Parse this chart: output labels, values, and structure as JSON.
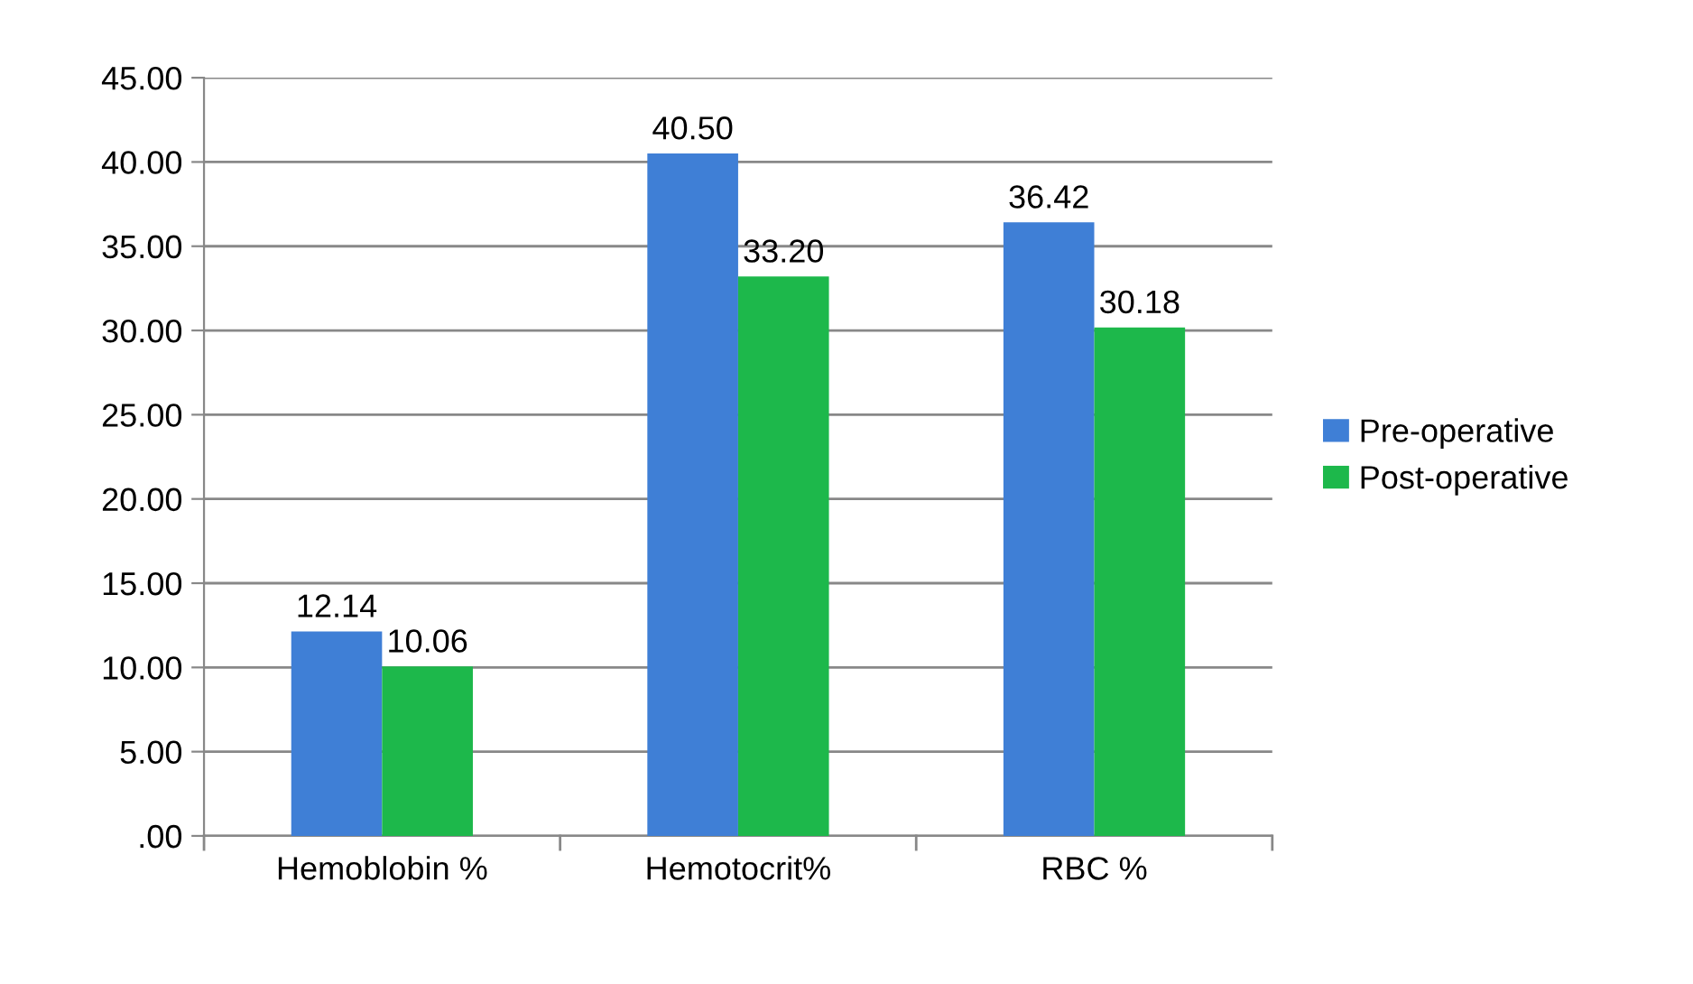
{
  "chart_data": {
    "type": "bar",
    "categories": [
      "Hemoblobin %",
      "Hemotocrit%",
      "RBC %"
    ],
    "series": [
      {
        "name": "Pre-operative",
        "color": "#3f7fd6",
        "values": [
          12.14,
          40.5,
          36.42
        ],
        "value_labels": [
          "12.14",
          "40.50",
          "36.42"
        ]
      },
      {
        "name": "Post-operative",
        "color": "#1db84b",
        "values": [
          10.06,
          33.2,
          30.18
        ],
        "value_labels": [
          "10.06",
          "33.20",
          "30.18"
        ]
      }
    ],
    "ylim": [
      0,
      45
    ],
    "yticks": [
      {
        "value": 0,
        "label": ".00"
      },
      {
        "value": 5,
        "label": "5.00"
      },
      {
        "value": 10,
        "label": "10.00"
      },
      {
        "value": 15,
        "label": "15.00"
      },
      {
        "value": 20,
        "label": "20.00"
      },
      {
        "value": 25,
        "label": "25.00"
      },
      {
        "value": 30,
        "label": "30.00"
      },
      {
        "value": 35,
        "label": "35.00"
      },
      {
        "value": 40,
        "label": "40.00"
      },
      {
        "value": 45,
        "label": "45.00"
      }
    ],
    "grid": "y",
    "legend": "right"
  }
}
